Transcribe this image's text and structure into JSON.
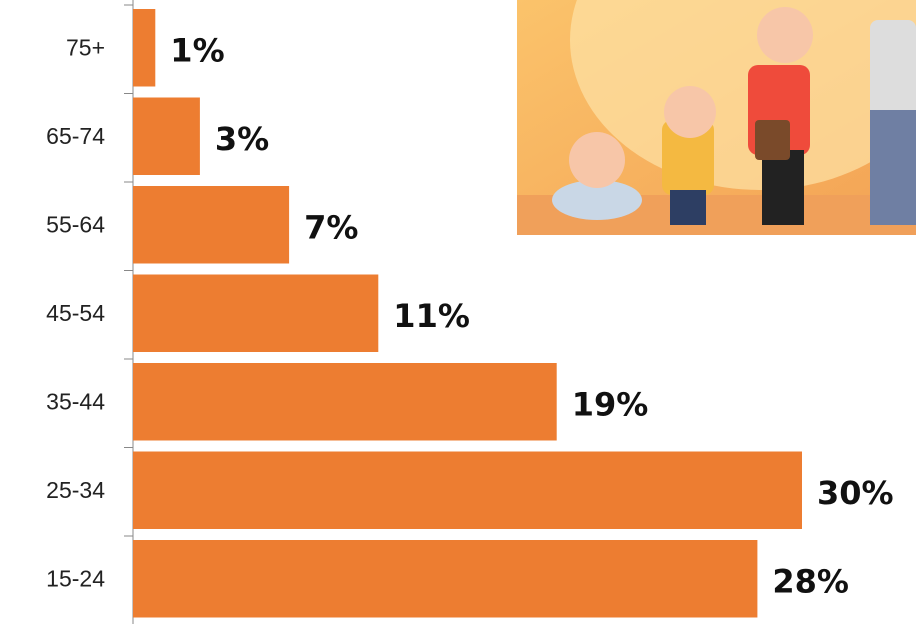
{
  "chart_data": {
    "type": "bar",
    "orientation": "horizontal",
    "categories": [
      "75+",
      "65-74",
      "55-64",
      "45-54",
      "35-44",
      "25-34",
      "15-24"
    ],
    "values": [
      1,
      3,
      7,
      11,
      19,
      30,
      28
    ],
    "value_labels": [
      "1%",
      "3%",
      "7%",
      "11%",
      "19%",
      "30%",
      "28%"
    ],
    "color": "#ed7d31"
  }
}
